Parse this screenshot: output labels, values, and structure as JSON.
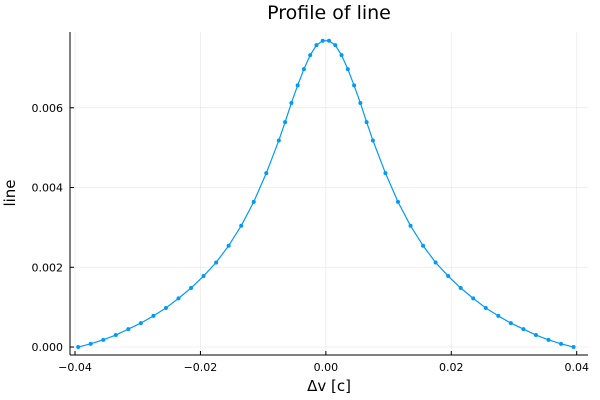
{
  "chart_data": {
    "type": "line",
    "title": "Profile of line",
    "xlabel": "Δv [c]",
    "ylabel": "line",
    "xlim": [
      -0.0408,
      0.0418
    ],
    "ylim": [
      -0.0002,
      0.0079
    ],
    "grid": true,
    "legend": "none",
    "markers": true,
    "x_ticks": [
      {
        "value": -0.04,
        "label": "−0.04"
      },
      {
        "value": -0.02,
        "label": "−0.02"
      },
      {
        "value": 0.0,
        "label": "0.00"
      },
      {
        "value": 0.02,
        "label": "0.02"
      },
      {
        "value": 0.04,
        "label": "0.04"
      }
    ],
    "y_ticks": [
      {
        "value": 0.0,
        "label": "0.000"
      },
      {
        "value": 0.002,
        "label": "0.002"
      },
      {
        "value": 0.004,
        "label": "0.004"
      },
      {
        "value": 0.006,
        "label": "0.006"
      }
    ],
    "series": [
      {
        "name": "line",
        "color": "#009AFA",
        "x": [
          -0.0395,
          -0.0375,
          -0.0355,
          -0.0335,
          -0.0315,
          -0.0295,
          -0.0275,
          -0.0255,
          -0.0235,
          -0.0215,
          -0.0195,
          -0.0175,
          -0.0155,
          -0.0135,
          -0.0115,
          -0.0095,
          -0.0075,
          -0.0065,
          -0.0055,
          -0.0045,
          -0.0035,
          -0.0025,
          -0.0015,
          -0.0005,
          0.0005,
          0.0015,
          0.0025,
          0.0035,
          0.0045,
          0.0055,
          0.0065,
          0.0075,
          0.0095,
          0.0115,
          0.0135,
          0.0155,
          0.0175,
          0.0195,
          0.0215,
          0.0235,
          0.0255,
          0.0275,
          0.0295,
          0.0315,
          0.0335,
          0.0355,
          0.0375,
          0.0395
        ],
        "y": [
          0.0,
          8e-05,
          0.00018,
          0.0003,
          0.00045,
          0.0006,
          0.00078,
          0.00098,
          0.00122,
          0.00148,
          0.00178,
          0.00212,
          0.00254,
          0.00304,
          0.00364,
          0.00436,
          0.00518,
          0.00564,
          0.00612,
          0.00656,
          0.00697,
          0.00732,
          0.00757,
          0.00768,
          0.00768,
          0.00757,
          0.00732,
          0.00697,
          0.00656,
          0.00612,
          0.00564,
          0.00518,
          0.00436,
          0.00364,
          0.00304,
          0.00254,
          0.00212,
          0.00178,
          0.00148,
          0.00122,
          0.00098,
          0.00078,
          0.0006,
          0.00045,
          0.0003,
          0.00018,
          8e-05,
          0.0
        ]
      }
    ]
  }
}
